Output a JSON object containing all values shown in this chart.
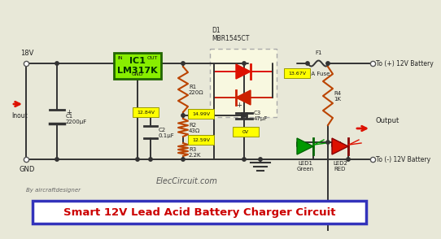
{
  "bg_color": "#e8e8d8",
  "title_text": "Smart 12V Lead Acid Battery Charger Circuit",
  "title_color": "#cc0000",
  "title_box_color": "#ffffff",
  "title_border_color": "#3333bb",
  "subtitle": "By aircraftdesigner",
  "website": "ElecCircuit.com",
  "ic1_label": "IC1\nLM317K",
  "ic1_color": "#88ee00",
  "ic1_border": "#226600",
  "wire_color": "#333333",
  "red_color": "#dd1100",
  "green_color": "#009900",
  "resistor_color": "#bb4400",
  "label_18v": "18V",
  "label_gnd": "GND",
  "label_inout": "Inout",
  "label_output": "Output",
  "label_to_pos": "To (+) 12V Battery",
  "label_to_neg": "To (-) 12V Battery",
  "label_c1": "C1\n2200μF",
  "label_c2": "C2\n0.1μF",
  "label_c3": "C3\n47μF",
  "label_r1": "R1\n220Ω",
  "label_r2": "R2\n43Ω",
  "label_r3": "R3\n2.2K",
  "label_r4": "R4\n1K",
  "label_d1": "D1\nMBR1545CT",
  "label_f1": "F1",
  "label_fuse": "2A Fuse",
  "label_led1": "LED1\nGreen",
  "label_led2": "LED2\nRED",
  "label_in": "IN",
  "label_out": "OUT",
  "label_gnd_ic": "GND",
  "voltage_labels": [
    "12.84V",
    "14.99V",
    "12.59V",
    "13.67V",
    "0V"
  ]
}
